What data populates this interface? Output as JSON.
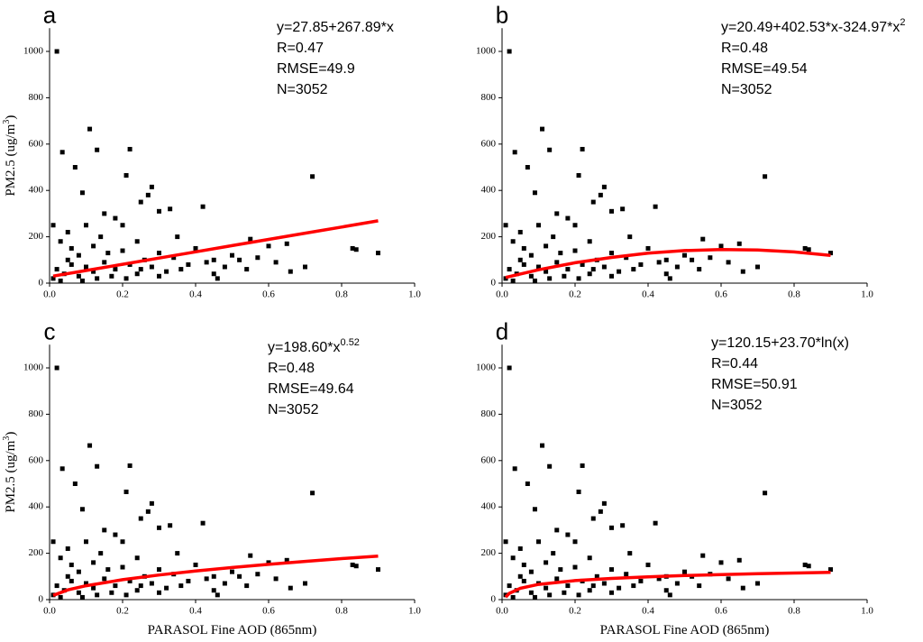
{
  "chart_data": [
    {
      "type": "scatter",
      "panel": "a",
      "equation": [
        "y=27.85+267.89*x"
      ],
      "stats": [
        "R=0.47",
        "RMSE=49.9",
        "N=3052"
      ],
      "y_label": [
        "PM2.5 (ug/m",
        "3",
        ")"
      ],
      "xlim": [
        0,
        1
      ],
      "ylim": [
        0,
        1100
      ],
      "xticks": [
        {
          "value": 0,
          "label": "0.0"
        },
        0.2,
        0.4,
        0.6,
        0.8,
        {
          "value": 1,
          "label": "1.0"
        }
      ],
      "yticks": [
        0,
        200,
        400,
        600,
        800,
        1000
      ],
      "points": {
        "color": "#000000",
        "x": [
          0.02,
          0.035,
          0.07,
          0.11,
          0.13,
          0.22,
          0.21,
          0.28,
          0.27,
          0.09,
          0.72,
          0.55,
          0.6,
          0.65,
          0.66,
          0.83,
          0.84,
          0.9,
          0.5,
          0.45,
          0.46,
          0.4,
          0.42,
          0.33,
          0.3,
          0.35,
          0.25,
          0.15,
          0.18,
          0.2,
          0.1,
          0.05,
          0.01,
          0.03,
          0.06,
          0.08,
          0.12,
          0.14,
          0.16,
          0.2,
          0.24,
          0.26,
          0.3,
          0.34,
          0.38,
          0.02,
          0.04,
          0.06,
          0.08,
          0.1,
          0.12,
          0.15,
          0.18,
          0.22,
          0.25,
          0.28,
          0.32,
          0.36,
          0.43,
          0.48,
          0.52,
          0.57,
          0.62,
          0.01,
          0.03,
          0.05,
          0.09,
          0.13,
          0.17,
          0.21,
          0.24,
          0.3,
          0.45,
          0.7,
          0.54
        ],
        "y": [
          1000,
          565,
          500,
          665,
          575,
          578,
          465,
          415,
          380,
          390,
          460,
          190,
          160,
          170,
          50,
          150,
          145,
          130,
          120,
          100,
          20,
          150,
          330,
          320,
          310,
          200,
          350,
          300,
          280,
          250,
          250,
          220,
          250,
          180,
          150,
          120,
          160,
          200,
          130,
          140,
          180,
          100,
          130,
          110,
          80,
          60,
          40,
          80,
          30,
          70,
          50,
          90,
          60,
          80,
          60,
          70,
          50,
          60,
          90,
          70,
          100,
          110,
          90,
          20,
          10,
          100,
          10,
          20,
          30,
          20,
          40,
          30,
          40,
          70,
          60
        ]
      },
      "fit": {
        "color": "#ff0000",
        "x": [
          0.01,
          0.1,
          0.2,
          0.3,
          0.4,
          0.5,
          0.6,
          0.7,
          0.8,
          0.9
        ],
        "y": [
          30.5,
          54.6,
          81.4,
          108.2,
          135,
          161.8,
          188.6,
          215.4,
          242.2,
          269
        ]
      }
    },
    {
      "type": "scatter",
      "panel": "b",
      "equation": [
        "y=20.49+402.53*x-324.97*x",
        "2"
      ],
      "stats": [
        "R=0.48",
        "RMSE=49.54",
        "N=3052"
      ],
      "xlim": [
        0,
        1
      ],
      "ylim": [
        0,
        1100
      ],
      "xticks": [
        {
          "value": 0,
          "label": "0.0"
        },
        0.2,
        0.4,
        0.6,
        0.8,
        {
          "value": 1,
          "label": "1.0"
        }
      ],
      "yticks": [
        0,
        200,
        400,
        600,
        800,
        1000
      ],
      "points": {
        "color": "#000000",
        "x": [
          0.02,
          0.035,
          0.07,
          0.11,
          0.13,
          0.22,
          0.21,
          0.28,
          0.27,
          0.09,
          0.72,
          0.55,
          0.6,
          0.65,
          0.66,
          0.83,
          0.84,
          0.9,
          0.5,
          0.45,
          0.46,
          0.4,
          0.42,
          0.33,
          0.3,
          0.35,
          0.25,
          0.15,
          0.18,
          0.2,
          0.1,
          0.05,
          0.01,
          0.03,
          0.06,
          0.08,
          0.12,
          0.14,
          0.16,
          0.2,
          0.24,
          0.26,
          0.3,
          0.34,
          0.38,
          0.02,
          0.04,
          0.06,
          0.08,
          0.1,
          0.12,
          0.15,
          0.18,
          0.22,
          0.25,
          0.28,
          0.32,
          0.36,
          0.43,
          0.48,
          0.52,
          0.57,
          0.62,
          0.01,
          0.03,
          0.05,
          0.09,
          0.13,
          0.17,
          0.21,
          0.24,
          0.3,
          0.45,
          0.7,
          0.54
        ],
        "y": [
          1000,
          565,
          500,
          665,
          575,
          578,
          465,
          415,
          380,
          390,
          460,
          190,
          160,
          170,
          50,
          150,
          145,
          130,
          120,
          100,
          20,
          150,
          330,
          320,
          310,
          200,
          350,
          300,
          280,
          250,
          250,
          220,
          250,
          180,
          150,
          120,
          160,
          200,
          130,
          140,
          180,
          100,
          130,
          110,
          80,
          60,
          40,
          80,
          30,
          70,
          50,
          90,
          60,
          80,
          60,
          70,
          50,
          60,
          90,
          70,
          100,
          110,
          90,
          20,
          10,
          100,
          10,
          20,
          30,
          20,
          40,
          30,
          40,
          70,
          60
        ]
      },
      "fit": {
        "color": "#ff0000",
        "x": [
          0.01,
          0.1,
          0.2,
          0.3,
          0.4,
          0.5,
          0.6,
          0.7,
          0.8,
          0.9
        ],
        "y": [
          24.5,
          57.5,
          88,
          111,
          129.5,
          140.5,
          145,
          143,
          134.5,
          119.5
        ]
      }
    },
    {
      "type": "scatter",
      "panel": "c",
      "equation": [
        "y=198.60*x",
        "0.52"
      ],
      "stats": [
        "R=0.48",
        "RMSE=49.64",
        "N=3052"
      ],
      "y_label": [
        "PM2.5 (ug/m",
        "3",
        ")"
      ],
      "x_label": "PARASOL Fine AOD (865nm)",
      "xlim": [
        0,
        1
      ],
      "ylim": [
        0,
        1100
      ],
      "xticks": [
        {
          "value": 0,
          "label": "0.0"
        },
        0.2,
        0.4,
        0.6,
        0.8,
        {
          "value": 1,
          "label": "1.0"
        }
      ],
      "yticks": [
        0,
        200,
        400,
        600,
        800,
        1000
      ],
      "points": {
        "color": "#000000",
        "x": [
          0.02,
          0.035,
          0.07,
          0.11,
          0.13,
          0.22,
          0.21,
          0.28,
          0.27,
          0.09,
          0.72,
          0.55,
          0.6,
          0.65,
          0.66,
          0.83,
          0.84,
          0.9,
          0.5,
          0.45,
          0.46,
          0.4,
          0.42,
          0.33,
          0.3,
          0.35,
          0.25,
          0.15,
          0.18,
          0.2,
          0.1,
          0.05,
          0.01,
          0.03,
          0.06,
          0.08,
          0.12,
          0.14,
          0.16,
          0.2,
          0.24,
          0.26,
          0.3,
          0.34,
          0.38,
          0.02,
          0.04,
          0.06,
          0.08,
          0.1,
          0.12,
          0.15,
          0.18,
          0.22,
          0.25,
          0.28,
          0.32,
          0.36,
          0.43,
          0.48,
          0.52,
          0.57,
          0.62,
          0.01,
          0.03,
          0.05,
          0.09,
          0.13,
          0.17,
          0.21,
          0.24,
          0.3,
          0.45,
          0.7,
          0.54
        ],
        "y": [
          1000,
          565,
          500,
          665,
          575,
          578,
          465,
          415,
          380,
          390,
          460,
          190,
          160,
          170,
          50,
          150,
          145,
          130,
          120,
          100,
          20,
          150,
          330,
          320,
          310,
          200,
          350,
          300,
          280,
          250,
          250,
          220,
          250,
          180,
          150,
          120,
          160,
          200,
          130,
          140,
          180,
          100,
          130,
          110,
          80,
          60,
          40,
          80,
          30,
          70,
          50,
          90,
          60,
          80,
          60,
          70,
          50,
          60,
          90,
          70,
          100,
          110,
          90,
          20,
          10,
          100,
          10,
          20,
          30,
          20,
          40,
          30,
          40,
          70,
          60
        ]
      },
      "fit": {
        "color": "#ff0000",
        "x": [
          0.01,
          0.05,
          0.1,
          0.2,
          0.3,
          0.4,
          0.5,
          0.6,
          0.7,
          0.8,
          0.9
        ],
        "y": [
          18.3,
          41.9,
          60,
          86,
          106.2,
          123.3,
          138.4,
          152.2,
          165,
          176.9,
          188.1
        ]
      }
    },
    {
      "type": "scatter",
      "panel": "d",
      "equation": [
        "y=120.15+23.70*ln(x)"
      ],
      "stats": [
        "R=0.44",
        "RMSE=50.91",
        "N=3052"
      ],
      "x_label": "PARASOL Fine AOD (865nm)",
      "xlim": [
        0,
        1
      ],
      "ylim": [
        0,
        1100
      ],
      "xticks": [
        {
          "value": 0,
          "label": "0.0"
        },
        0.2,
        0.4,
        0.6,
        0.8,
        {
          "value": 1,
          "label": "1.0"
        }
      ],
      "yticks": [
        0,
        200,
        400,
        600,
        800,
        1000
      ],
      "points": {
        "color": "#000000",
        "x": [
          0.02,
          0.035,
          0.07,
          0.11,
          0.13,
          0.22,
          0.21,
          0.28,
          0.27,
          0.09,
          0.72,
          0.55,
          0.6,
          0.65,
          0.66,
          0.83,
          0.84,
          0.9,
          0.5,
          0.45,
          0.46,
          0.4,
          0.42,
          0.33,
          0.3,
          0.35,
          0.25,
          0.15,
          0.18,
          0.2,
          0.1,
          0.05,
          0.01,
          0.03,
          0.06,
          0.08,
          0.12,
          0.14,
          0.16,
          0.2,
          0.24,
          0.26,
          0.3,
          0.34,
          0.38,
          0.02,
          0.04,
          0.06,
          0.08,
          0.1,
          0.12,
          0.15,
          0.18,
          0.22,
          0.25,
          0.28,
          0.32,
          0.36,
          0.43,
          0.48,
          0.52,
          0.57,
          0.62,
          0.01,
          0.03,
          0.05,
          0.09,
          0.13,
          0.17,
          0.21,
          0.24,
          0.3,
          0.45,
          0.7,
          0.54
        ],
        "y": [
          1000,
          565,
          500,
          665,
          575,
          578,
          465,
          415,
          380,
          390,
          460,
          190,
          160,
          170,
          50,
          150,
          145,
          130,
          120,
          100,
          20,
          150,
          330,
          320,
          310,
          200,
          350,
          300,
          280,
          250,
          250,
          220,
          250,
          180,
          150,
          120,
          160,
          200,
          130,
          140,
          180,
          100,
          130,
          110,
          80,
          60,
          40,
          80,
          30,
          70,
          50,
          90,
          60,
          80,
          60,
          70,
          50,
          60,
          90,
          70,
          100,
          110,
          90,
          20,
          10,
          100,
          10,
          20,
          30,
          20,
          40,
          30,
          40,
          70,
          60
        ]
      },
      "fit": {
        "color": "#ff0000",
        "x": [
          0.01,
          0.02,
          0.05,
          0.1,
          0.2,
          0.3,
          0.4,
          0.5,
          0.6,
          0.7,
          0.8,
          0.9
        ],
        "y": [
          11,
          27.4,
          49.1,
          65.6,
          82,
          91.6,
          98.4,
          103.7,
          108,
          111.7,
          114.9,
          117.7
        ]
      }
    }
  ]
}
